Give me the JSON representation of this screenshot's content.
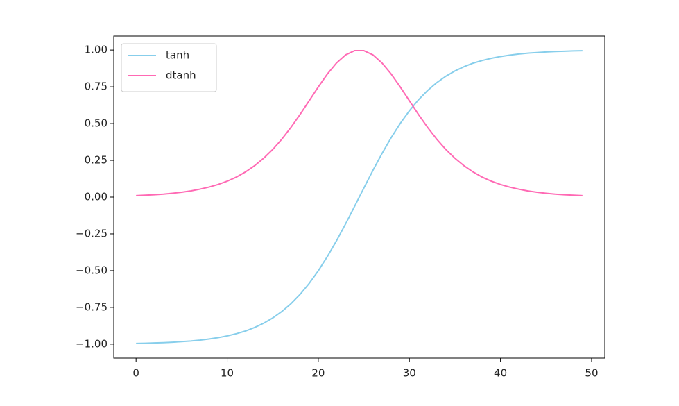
{
  "chart_data": {
    "type": "line",
    "x": [
      0,
      1,
      2,
      3,
      4,
      5,
      6,
      7,
      8,
      9,
      10,
      11,
      12,
      13,
      14,
      15,
      16,
      17,
      18,
      19,
      20,
      21,
      22,
      23,
      24,
      25,
      26,
      27,
      28,
      29,
      30,
      31,
      32,
      33,
      34,
      35,
      36,
      37,
      38,
      39,
      40,
      41,
      42,
      43,
      44,
      45,
      46,
      47,
      48,
      49
    ],
    "series": [
      {
        "name": "tanh",
        "color": "#87ceeb",
        "values": [
          -0.995,
          -0.994,
          -0.992,
          -0.99,
          -0.987,
          -0.983,
          -0.979,
          -0.973,
          -0.965,
          -0.956,
          -0.944,
          -0.929,
          -0.911,
          -0.887,
          -0.858,
          -0.822,
          -0.778,
          -0.725,
          -0.662,
          -0.587,
          -0.501,
          -0.404,
          -0.297,
          -0.182,
          -0.061,
          0.061,
          0.182,
          0.297,
          0.404,
          0.501,
          0.587,
          0.662,
          0.725,
          0.778,
          0.822,
          0.858,
          0.887,
          0.911,
          0.929,
          0.944,
          0.956,
          0.965,
          0.973,
          0.979,
          0.983,
          0.987,
          0.99,
          0.992,
          0.994,
          0.995
        ]
      },
      {
        "name": "dtanh",
        "color": "#ff69b4",
        "values": [
          0.01,
          0.013,
          0.016,
          0.02,
          0.026,
          0.033,
          0.042,
          0.054,
          0.068,
          0.086,
          0.108,
          0.136,
          0.171,
          0.213,
          0.264,
          0.324,
          0.394,
          0.474,
          0.562,
          0.655,
          0.749,
          0.837,
          0.912,
          0.967,
          0.996,
          0.996,
          0.967,
          0.912,
          0.837,
          0.749,
          0.655,
          0.562,
          0.474,
          0.394,
          0.324,
          0.264,
          0.213,
          0.171,
          0.136,
          0.108,
          0.086,
          0.068,
          0.054,
          0.042,
          0.033,
          0.026,
          0.02,
          0.016,
          0.013,
          0.01
        ]
      }
    ],
    "xlim": [
      -2.45,
      51.45
    ],
    "xticks": [
      0,
      10,
      20,
      30,
      40,
      50
    ],
    "ylim": [
      -1.095,
      1.095
    ],
    "yticks": [
      {
        "value": -1,
        "label": "−1.00"
      },
      {
        "value": -0.75,
        "label": "−0.75"
      },
      {
        "value": -0.5,
        "label": "−0.50"
      },
      {
        "value": -0.25,
        "label": "−0.25"
      },
      {
        "value": 0,
        "label": "0.00"
      },
      0.25,
      {
        "value": 0.5,
        "label": "0.50"
      },
      0.75,
      {
        "value": 1,
        "label": "1.00"
      }
    ],
    "legend": "upper left"
  }
}
